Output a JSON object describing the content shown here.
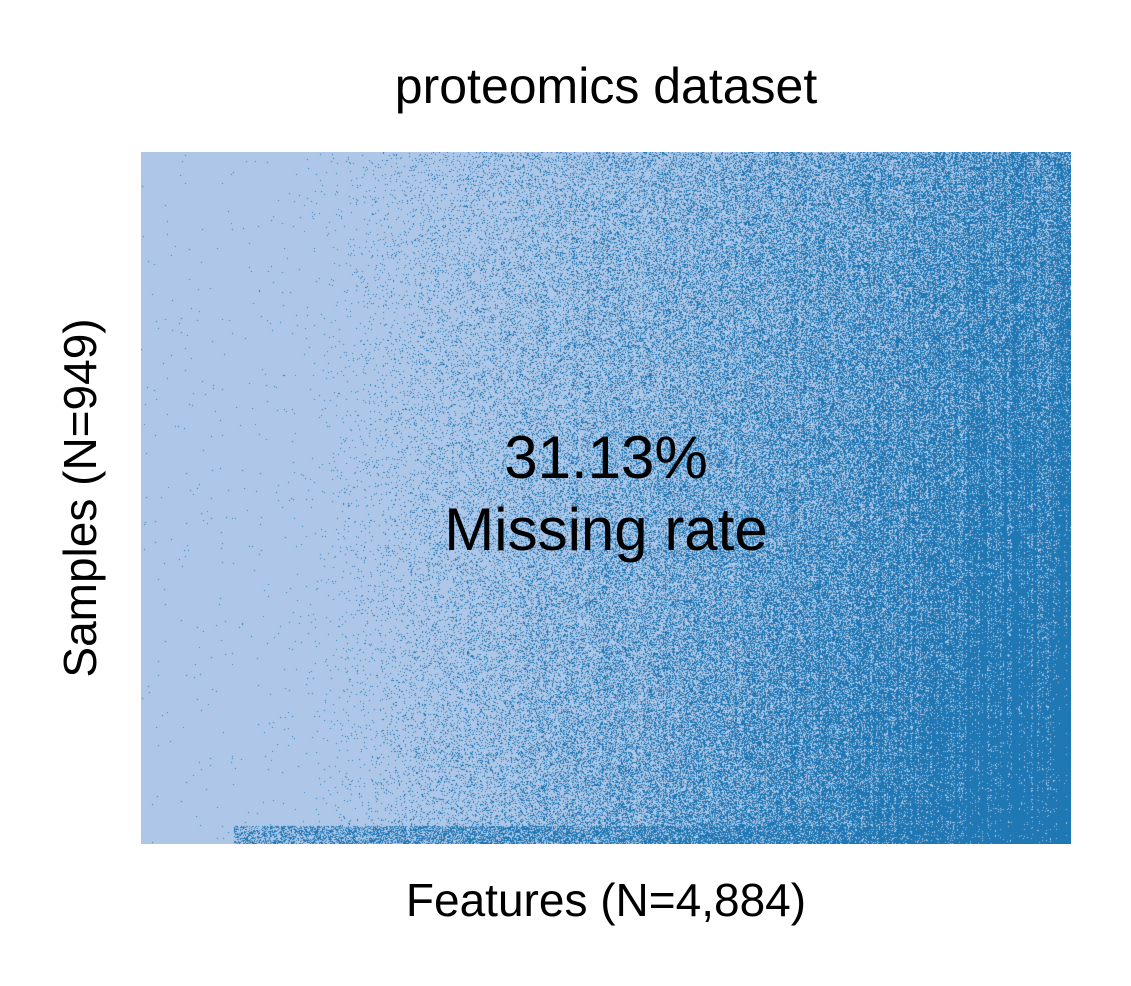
{
  "chart_data": {
    "type": "heatmap",
    "title": "proteomics dataset",
    "xlabel": "Features (N=4,884)",
    "ylabel": "Samples (N=949)",
    "annotation": {
      "value": "31.13%",
      "label": "Missing rate"
    },
    "n_features": 4884,
    "n_samples": 949,
    "missing_rate": 0.3113,
    "sort": "features sorted by ascending missingness (left to right); samples sorted by descending missingness (top to bottom)",
    "colors": {
      "observed": "#aec7e8",
      "missing": "#1f77b4"
    }
  }
}
